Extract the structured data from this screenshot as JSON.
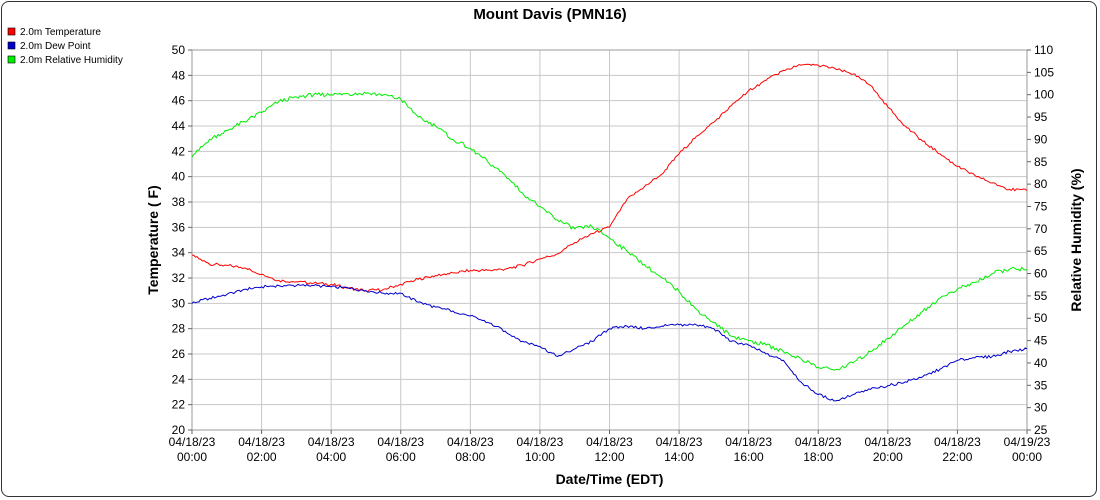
{
  "chart_data": {
    "type": "line",
    "title": "Mount Davis (PMN16)",
    "xlabel": "Date/Time (EDT)",
    "ylabel": "Temperature ( F)",
    "y2label": "Relative Humidity (%)",
    "xlim_hours": [
      0,
      24
    ],
    "ylim": [
      20,
      50
    ],
    "y2lim": [
      25,
      110
    ],
    "y_ticks": [
      "20",
      "22",
      "24",
      "26",
      "28",
      "30",
      "32",
      "34",
      "36",
      "38",
      "40",
      "42",
      "44",
      "46",
      "48",
      "50"
    ],
    "y2_ticks": [
      "25",
      "30",
      "35",
      "40",
      "45",
      "50",
      "55",
      "60",
      "65",
      "70",
      "75",
      "80",
      "85",
      "90",
      "95",
      "100",
      "105",
      "110"
    ],
    "x_tick_labels": [
      {
        "date": "04/18/23",
        "time": "00:00"
      },
      {
        "date": "04/18/23",
        "time": "02:00"
      },
      {
        "date": "04/18/23",
        "time": "04:00"
      },
      {
        "date": "04/18/23",
        "time": "06:00"
      },
      {
        "date": "04/18/23",
        "time": "08:00"
      },
      {
        "date": "04/18/23",
        "time": "10:00"
      },
      {
        "date": "04/18/23",
        "time": "12:00"
      },
      {
        "date": "04/18/23",
        "time": "14:00"
      },
      {
        "date": "04/18/23",
        "time": "16:00"
      },
      {
        "date": "04/18/23",
        "time": "18:00"
      },
      {
        "date": "04/18/23",
        "time": "20:00"
      },
      {
        "date": "04/18/23",
        "time": "22:00"
      },
      {
        "date": "04/19/23",
        "time": "00:00"
      }
    ],
    "grid": true,
    "legend_position": "top-left",
    "series": [
      {
        "name": "2.0m Temperature",
        "color": "#ff0000",
        "axis": "left",
        "points": [
          [
            "04/18/23 00:00",
            33.8
          ],
          [
            "04/18/23 00:30",
            33.1
          ],
          [
            "04/18/23 01:00",
            33.0
          ],
          [
            "04/18/23 01:30",
            32.8
          ],
          [
            "04/18/23 02:00",
            32.3
          ],
          [
            "04/18/23 02:30",
            31.8
          ],
          [
            "04/18/23 03:00",
            31.7
          ],
          [
            "04/18/23 03:30",
            31.6
          ],
          [
            "04/18/23 04:00",
            31.5
          ],
          [
            "04/18/23 04:30",
            31.2
          ],
          [
            "04/18/23 05:00",
            31.0
          ],
          [
            "04/18/23 05:30",
            31.1
          ],
          [
            "04/18/23 06:00",
            31.5
          ],
          [
            "04/18/23 06:30",
            31.9
          ],
          [
            "04/18/23 07:00",
            32.2
          ],
          [
            "04/18/23 07:30",
            32.4
          ],
          [
            "04/18/23 08:00",
            32.6
          ],
          [
            "04/18/23 08:30",
            32.6
          ],
          [
            "04/18/23 09:00",
            32.7
          ],
          [
            "04/18/23 09:30",
            33.0
          ],
          [
            "04/18/23 10:00",
            33.5
          ],
          [
            "04/18/23 10:30",
            33.9
          ],
          [
            "04/18/23 11:00",
            34.8
          ],
          [
            "04/18/23 11:30",
            35.5
          ],
          [
            "04/18/23 12:00",
            36.0
          ],
          [
            "04/18/23 12:30",
            38.2
          ],
          [
            "04/18/23 13:00",
            39.2
          ],
          [
            "04/18/23 13:30",
            40.2
          ],
          [
            "04/18/23 14:00",
            41.8
          ],
          [
            "04/18/23 14:30",
            43.2
          ],
          [
            "04/18/23 15:00",
            44.3
          ],
          [
            "04/18/23 15:30",
            45.6
          ],
          [
            "04/18/23 16:00",
            46.8
          ],
          [
            "04/18/23 16:30",
            47.6
          ],
          [
            "04/18/23 17:00",
            48.4
          ],
          [
            "04/18/23 17:30",
            48.8
          ],
          [
            "04/18/23 18:00",
            48.8
          ],
          [
            "04/18/23 18:30",
            48.5
          ],
          [
            "04/18/23 19:00",
            48.1
          ],
          [
            "04/18/23 19:30",
            47.2
          ],
          [
            "04/18/23 20:00",
            45.5
          ],
          [
            "04/18/23 20:30",
            44.0
          ],
          [
            "04/18/23 21:00",
            42.8
          ],
          [
            "04/18/23 21:30",
            41.8
          ],
          [
            "04/18/23 22:00",
            40.8
          ],
          [
            "04/18/23 22:30",
            40.1
          ],
          [
            "04/18/23 23:00",
            39.5
          ],
          [
            "04/18/23 23:30",
            39.0
          ],
          [
            "04/19/23 00:00",
            38.9
          ]
        ]
      },
      {
        "name": "2.0m Dew Point",
        "color": "#0000cc",
        "axis": "left",
        "points": [
          [
            "04/18/23 00:00",
            30.0
          ],
          [
            "04/18/23 00:30",
            30.4
          ],
          [
            "04/18/23 01:00",
            30.7
          ],
          [
            "04/18/23 01:30",
            31.1
          ],
          [
            "04/18/23 02:00",
            31.3
          ],
          [
            "04/18/23 02:30",
            31.4
          ],
          [
            "04/18/23 03:00",
            31.4
          ],
          [
            "04/18/23 03:30",
            31.4
          ],
          [
            "04/18/23 04:00",
            31.3
          ],
          [
            "04/18/23 04:30",
            31.2
          ],
          [
            "04/18/23 05:00",
            31.0
          ],
          [
            "04/18/23 05:30",
            30.8
          ],
          [
            "04/18/23 06:00",
            30.8
          ],
          [
            "04/18/23 06:30",
            30.1
          ],
          [
            "04/18/23 07:00",
            29.7
          ],
          [
            "04/18/23 07:30",
            29.4
          ],
          [
            "04/18/23 08:00",
            29.0
          ],
          [
            "04/18/23 08:30",
            28.5
          ],
          [
            "04/18/23 09:00",
            27.8
          ],
          [
            "04/18/23 09:30",
            27.0
          ],
          [
            "04/18/23 10:00",
            26.6
          ],
          [
            "04/18/23 10:30",
            25.8
          ],
          [
            "04/18/23 11:00",
            26.4
          ],
          [
            "04/18/23 11:30",
            27.0
          ],
          [
            "04/18/23 12:00",
            28.0
          ],
          [
            "04/18/23 12:30",
            28.2
          ],
          [
            "04/18/23 13:00",
            28.0
          ],
          [
            "04/18/23 13:30",
            28.2
          ],
          [
            "04/18/23 14:00",
            28.3
          ],
          [
            "04/18/23 14:30",
            28.3
          ],
          [
            "04/18/23 15:00",
            28.0
          ],
          [
            "04/18/23 15:30",
            27.0
          ],
          [
            "04/18/23 16:00",
            26.7
          ],
          [
            "04/18/23 16:30",
            26.0
          ],
          [
            "04/18/23 17:00",
            25.5
          ],
          [
            "04/18/23 17:30",
            23.8
          ],
          [
            "04/18/23 18:00",
            22.8
          ],
          [
            "04/18/23 18:30",
            22.3
          ],
          [
            "04/18/23 19:00",
            22.8
          ],
          [
            "04/18/23 19:30",
            23.2
          ],
          [
            "04/18/23 20:00",
            23.5
          ],
          [
            "04/18/23 20:30",
            23.8
          ],
          [
            "04/18/23 21:00",
            24.2
          ],
          [
            "04/18/23 21:30",
            24.8
          ],
          [
            "04/18/23 22:00",
            25.5
          ],
          [
            "04/18/23 22:30",
            25.7
          ],
          [
            "04/18/23 23:00",
            25.8
          ],
          [
            "04/18/23 23:30",
            26.2
          ],
          [
            "04/19/23 00:00",
            26.4
          ]
        ]
      },
      {
        "name": "2.0m Relative Humidity",
        "color": "#00ee00",
        "axis": "right",
        "points": [
          [
            "04/18/23 00:00",
            86.0
          ],
          [
            "04/18/23 00:30",
            90.0
          ],
          [
            "04/18/23 01:00",
            92.0
          ],
          [
            "04/18/23 01:30",
            94.0
          ],
          [
            "04/18/23 02:00",
            96.0
          ],
          [
            "04/18/23 02:30",
            98.5
          ],
          [
            "04/18/23 03:00",
            99.5
          ],
          [
            "04/18/23 03:30",
            100.0
          ],
          [
            "04/18/23 04:00",
            100.0
          ],
          [
            "04/18/23 04:30",
            100.2
          ],
          [
            "04/18/23 05:00",
            100.3
          ],
          [
            "04/18/23 05:30",
            100.0
          ],
          [
            "04/18/23 06:00",
            99.0
          ],
          [
            "04/18/23 06:30",
            95.0
          ],
          [
            "04/18/23 07:00",
            93.0
          ],
          [
            "04/18/23 07:30",
            90.0
          ],
          [
            "04/18/23 08:00",
            88.0
          ],
          [
            "04/18/23 08:30",
            85.0
          ],
          [
            "04/18/23 09:00",
            82.0
          ],
          [
            "04/18/23 09:30",
            78.0
          ],
          [
            "04/18/23 10:00",
            75.0
          ],
          [
            "04/18/23 10:30",
            72.0
          ],
          [
            "04/18/23 11:00",
            70.0
          ],
          [
            "04/18/23 11:30",
            70.5
          ],
          [
            "04/18/23 12:00",
            68.0
          ],
          [
            "04/18/23 12:30",
            65.0
          ],
          [
            "04/18/23 13:00",
            62.0
          ],
          [
            "04/18/23 13:30",
            59.0
          ],
          [
            "04/18/23 14:00",
            56.0
          ],
          [
            "04/18/23 14:30",
            52.0
          ],
          [
            "04/18/23 15:00",
            49.0
          ],
          [
            "04/18/23 15:30",
            46.0
          ],
          [
            "04/18/23 16:00",
            45.0
          ],
          [
            "04/18/23 16:30",
            44.0
          ],
          [
            "04/18/23 17:00",
            42.5
          ],
          [
            "04/18/23 17:30",
            41.0
          ],
          [
            "04/18/23 18:00",
            39.0
          ],
          [
            "04/18/23 18:30",
            38.5
          ],
          [
            "04/18/23 19:00",
            40.0
          ],
          [
            "04/18/23 19:30",
            42.5
          ],
          [
            "04/18/23 20:00",
            45.5
          ],
          [
            "04/18/23 20:30",
            48.5
          ],
          [
            "04/18/23 21:00",
            51.5
          ],
          [
            "04/18/23 21:30",
            54.5
          ],
          [
            "04/18/23 22:00",
            56.5
          ],
          [
            "04/18/23 22:30",
            58.0
          ],
          [
            "04/18/23 23:00",
            60.0
          ],
          [
            "04/18/23 23:30",
            61.0
          ],
          [
            "04/19/23 00:00",
            61.0
          ]
        ]
      }
    ]
  }
}
